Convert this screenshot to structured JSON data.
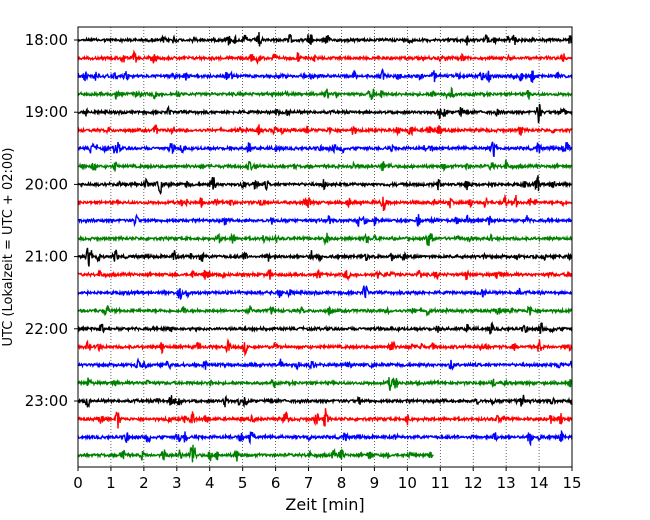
{
  "chart_data": {
    "type": "line",
    "title": "",
    "xlabel": "Zeit  [min]",
    "ylabel": "UTC (Lokalzeit = UTC + 02:00)",
    "xlim": [
      0,
      15
    ],
    "x_ticks": [
      "0",
      "1",
      "2",
      "3",
      "4",
      "5",
      "6",
      "7",
      "8",
      "9",
      "10",
      "11",
      "12",
      "13",
      "14",
      "15"
    ],
    "y_ticks": [
      {
        "label": "18:00",
        "row": 0
      },
      {
        "label": "19:00",
        "row": 4
      },
      {
        "label": "20:00",
        "row": 8
      },
      {
        "label": "21:00",
        "row": 12
      },
      {
        "label": "22:00",
        "row": 16
      },
      {
        "label": "23:00",
        "row": 20
      }
    ],
    "grid": "vertical dotted at each minute",
    "row_interval_minutes": 15,
    "trace_colors": [
      "#000000",
      "#ff0000",
      "#0000ff",
      "#008000"
    ],
    "traces": [
      {
        "start": "18:00",
        "end_min": 15
      },
      {
        "start": "18:15",
        "end_min": 15
      },
      {
        "start": "18:30",
        "end_min": 15
      },
      {
        "start": "18:45",
        "end_min": 15
      },
      {
        "start": "19:00",
        "end_min": 15
      },
      {
        "start": "19:15",
        "end_min": 15
      },
      {
        "start": "19:30",
        "end_min": 15
      },
      {
        "start": "19:45",
        "end_min": 15
      },
      {
        "start": "20:00",
        "end_min": 15
      },
      {
        "start": "20:15",
        "end_min": 15
      },
      {
        "start": "20:30",
        "end_min": 15
      },
      {
        "start": "20:45",
        "end_min": 15
      },
      {
        "start": "21:00",
        "end_min": 15
      },
      {
        "start": "21:15",
        "end_min": 15
      },
      {
        "start": "21:30",
        "end_min": 15
      },
      {
        "start": "21:45",
        "end_min": 15
      },
      {
        "start": "22:00",
        "end_min": 15
      },
      {
        "start": "22:15",
        "end_min": 15
      },
      {
        "start": "22:30",
        "end_min": 15
      },
      {
        "start": "22:45",
        "end_min": 15
      },
      {
        "start": "23:00",
        "end_min": 15
      },
      {
        "start": "23:15",
        "end_min": 15
      },
      {
        "start": "23:30",
        "end_min": 15
      },
      {
        "start": "23:45",
        "end_min": 10.8
      }
    ]
  }
}
